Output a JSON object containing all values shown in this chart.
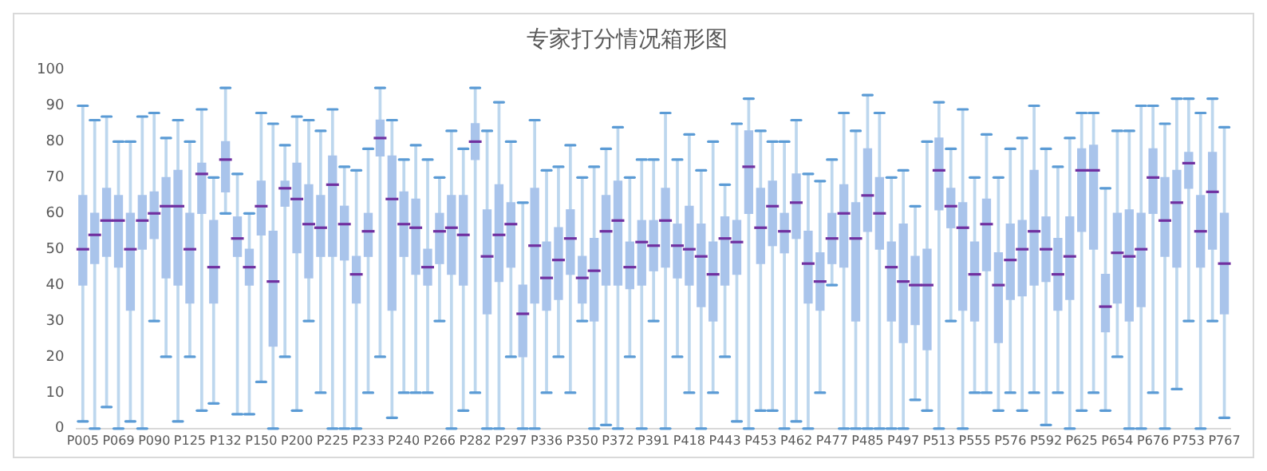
{
  "chart_data": {
    "type": "box",
    "title": "专家打分情况箱形图",
    "color": "#a9c4eb",
    "grid": false,
    "legend": false,
    "ylim": [
      0,
      100
    ],
    "yticks": [
      0,
      10,
      20,
      30,
      40,
      50,
      60,
      70,
      80,
      90,
      100
    ],
    "categories": [
      "P005",
      null,
      null,
      "P069",
      null,
      null,
      "P090",
      null,
      null,
      "P125",
      null,
      null,
      "P132",
      null,
      null,
      "P150",
      null,
      null,
      "P200",
      null,
      null,
      "P225",
      null,
      null,
      "P233",
      null,
      null,
      "P240",
      null,
      null,
      "P266",
      null,
      null,
      "P282",
      null,
      null,
      "P297",
      null,
      null,
      "P336",
      null,
      null,
      "P350",
      null,
      null,
      "P372",
      null,
      null,
      "P391",
      null,
      null,
      "P418",
      null,
      null,
      "P443",
      null,
      null,
      "P453",
      null,
      null,
      "P462",
      null,
      null,
      "P477",
      null,
      null,
      "P485",
      null,
      null,
      "P497",
      null,
      null,
      "P513",
      null,
      null,
      "P555",
      null,
      null,
      "P576",
      null,
      null,
      "P592",
      null,
      null,
      "P625",
      null,
      null,
      "P654",
      null,
      null,
      "P676",
      null,
      null,
      "P753",
      null,
      null,
      "P767"
    ],
    "boxes": [
      {
        "low": 2,
        "q1": 40,
        "median": 50,
        "q3": 65,
        "high": 90
      },
      {
        "low": 0,
        "q1": 46,
        "median": 54,
        "q3": 60,
        "high": 86
      },
      {
        "low": 6,
        "q1": 48,
        "median": 58,
        "q3": 67,
        "high": 87
      },
      {
        "low": 0,
        "q1": 45,
        "median": 58,
        "q3": 65,
        "high": 80
      },
      {
        "low": 2,
        "q1": 33,
        "median": 50,
        "q3": 60,
        "high": 80
      },
      {
        "low": 0,
        "q1": 50,
        "median": 58,
        "q3": 65,
        "high": 87
      },
      {
        "low": 30,
        "q1": 53,
        "median": 60,
        "q3": 66,
        "high": 88
      },
      {
        "low": 20,
        "q1": 42,
        "median": 62,
        "q3": 70,
        "high": 81
      },
      {
        "low": 2,
        "q1": 40,
        "median": 62,
        "q3": 72,
        "high": 86
      },
      {
        "low": 20,
        "q1": 35,
        "median": 50,
        "q3": 60,
        "high": 80
      },
      {
        "low": 5,
        "q1": 60,
        "median": 71,
        "q3": 74,
        "high": 89
      },
      {
        "low": 7,
        "q1": 35,
        "median": 45,
        "q3": 58,
        "high": 70
      },
      {
        "low": 60,
        "q1": 66,
        "median": 75,
        "q3": 80,
        "high": 95
      },
      {
        "low": 4,
        "q1": 48,
        "median": 53,
        "q3": 59,
        "high": 71
      },
      {
        "low": 4,
        "q1": 40,
        "median": 45,
        "q3": 50,
        "high": 60
      },
      {
        "low": 13,
        "q1": 54,
        "median": 62,
        "q3": 69,
        "high": 88
      },
      {
        "low": 0,
        "q1": 23,
        "median": 41,
        "q3": 55,
        "high": 85
      },
      {
        "low": 20,
        "q1": 62,
        "median": 67,
        "q3": 69,
        "high": 79
      },
      {
        "low": 5,
        "q1": 49,
        "median": 64,
        "q3": 74,
        "high": 87
      },
      {
        "low": 30,
        "q1": 42,
        "median": 57,
        "q3": 68,
        "high": 86
      },
      {
        "low": 10,
        "q1": 48,
        "median": 56,
        "q3": 65,
        "high": 83
      },
      {
        "low": 0,
        "q1": 48,
        "median": 68,
        "q3": 76,
        "high": 89
      },
      {
        "low": 0,
        "q1": 47,
        "median": 57,
        "q3": 62,
        "high": 73
      },
      {
        "low": 0,
        "q1": 35,
        "median": 43,
        "q3": 48,
        "high": 72
      },
      {
        "low": 10,
        "q1": 48,
        "median": 55,
        "q3": 60,
        "high": 78
      },
      {
        "low": 20,
        "q1": 76,
        "median": 81,
        "q3": 86,
        "high": 95
      },
      {
        "low": 3,
        "q1": 33,
        "median": 64,
        "q3": 76,
        "high": 86
      },
      {
        "low": 10,
        "q1": 48,
        "median": 57,
        "q3": 66,
        "high": 75
      },
      {
        "low": 10,
        "q1": 43,
        "median": 56,
        "q3": 64,
        "high": 79
      },
      {
        "low": 10,
        "q1": 40,
        "median": 45,
        "q3": 50,
        "high": 75
      },
      {
        "low": 30,
        "q1": 46,
        "median": 55,
        "q3": 60,
        "high": 70
      },
      {
        "low": 0,
        "q1": 43,
        "median": 56,
        "q3": 65,
        "high": 83
      },
      {
        "low": 5,
        "q1": 40,
        "median": 54,
        "q3": 65,
        "high": 78
      },
      {
        "low": 10,
        "q1": 75,
        "median": 80,
        "q3": 85,
        "high": 95
      },
      {
        "low": 0,
        "q1": 32,
        "median": 48,
        "q3": 61,
        "high": 83
      },
      {
        "low": 0,
        "q1": 41,
        "median": 54,
        "q3": 68,
        "high": 91
      },
      {
        "low": 20,
        "q1": 45,
        "median": 57,
        "q3": 63,
        "high": 80
      },
      {
        "low": 0,
        "q1": 20,
        "median": 32,
        "q3": 40,
        "high": 63
      },
      {
        "low": 0,
        "q1": 35,
        "median": 51,
        "q3": 67,
        "high": 86
      },
      {
        "low": 10,
        "q1": 33,
        "median": 42,
        "q3": 52,
        "high": 72
      },
      {
        "low": 20,
        "q1": 36,
        "median": 47,
        "q3": 56,
        "high": 73
      },
      {
        "low": 10,
        "q1": 43,
        "median": 53,
        "q3": 61,
        "high": 79
      },
      {
        "low": 30,
        "q1": 35,
        "median": 42,
        "q3": 48,
        "high": 70
      },
      {
        "low": 0,
        "q1": 30,
        "median": 44,
        "q3": 53,
        "high": 73
      },
      {
        "low": 1,
        "q1": 40,
        "median": 55,
        "q3": 65,
        "high": 78
      },
      {
        "low": 0,
        "q1": 40,
        "median": 58,
        "q3": 69,
        "high": 84
      },
      {
        "low": 20,
        "q1": 39,
        "median": 45,
        "q3": 52,
        "high": 70
      },
      {
        "low": 0,
        "q1": 40,
        "median": 52,
        "q3": 58,
        "high": 75
      },
      {
        "low": 30,
        "q1": 44,
        "median": 51,
        "q3": 58,
        "high": 75
      },
      {
        "low": 0,
        "q1": 45,
        "median": 58,
        "q3": 67,
        "high": 88
      },
      {
        "low": 20,
        "q1": 42,
        "median": 51,
        "q3": 57,
        "high": 75
      },
      {
        "low": 10,
        "q1": 40,
        "median": 50,
        "q3": 62,
        "high": 82
      },
      {
        "low": 0,
        "q1": 34,
        "median": 48,
        "q3": 57,
        "high": 72
      },
      {
        "low": 10,
        "q1": 30,
        "median": 43,
        "q3": 52,
        "high": 80
      },
      {
        "low": 20,
        "q1": 40,
        "median": 53,
        "q3": 59,
        "high": 68
      },
      {
        "low": 2,
        "q1": 43,
        "median": 52,
        "q3": 58,
        "high": 85
      },
      {
        "low": 0,
        "q1": 60,
        "median": 73,
        "q3": 83,
        "high": 92
      },
      {
        "low": 5,
        "q1": 46,
        "median": 56,
        "q3": 67,
        "high": 83
      },
      {
        "low": 5,
        "q1": 51,
        "median": 62,
        "q3": 69,
        "high": 80
      },
      {
        "low": 0,
        "q1": 49,
        "median": 55,
        "q3": 60,
        "high": 80
      },
      {
        "low": 2,
        "q1": 53,
        "median": 63,
        "q3": 71,
        "high": 86
      },
      {
        "low": 0,
        "q1": 35,
        "median": 46,
        "q3": 55,
        "high": 71
      },
      {
        "low": 10,
        "q1": 33,
        "median": 41,
        "q3": 49,
        "high": 69
      },
      {
        "low": 40,
        "q1": 46,
        "median": 53,
        "q3": 60,
        "high": 75
      },
      {
        "low": 0,
        "q1": 45,
        "median": 60,
        "q3": 68,
        "high": 88
      },
      {
        "low": 0,
        "q1": 30,
        "median": 53,
        "q3": 63,
        "high": 83
      },
      {
        "low": 0,
        "q1": 55,
        "median": 65,
        "q3": 78,
        "high": 93
      },
      {
        "low": 0,
        "q1": 50,
        "median": 60,
        "q3": 70,
        "high": 88
      },
      {
        "low": 0,
        "q1": 30,
        "median": 45,
        "q3": 52,
        "high": 70
      },
      {
        "low": 0,
        "q1": 24,
        "median": 41,
        "q3": 57,
        "high": 72
      },
      {
        "low": 8,
        "q1": 29,
        "median": 40,
        "q3": 48,
        "high": 62
      },
      {
        "low": 5,
        "q1": 22,
        "median": 40,
        "q3": 50,
        "high": 80
      },
      {
        "low": 0,
        "q1": 61,
        "median": 72,
        "q3": 81,
        "high": 91
      },
      {
        "low": 30,
        "q1": 56,
        "median": 62,
        "q3": 67,
        "high": 78
      },
      {
        "low": 0,
        "q1": 33,
        "median": 56,
        "q3": 63,
        "high": 89
      },
      {
        "low": 10,
        "q1": 30,
        "median": 43,
        "q3": 52,
        "high": 70
      },
      {
        "low": 10,
        "q1": 44,
        "median": 57,
        "q3": 64,
        "high": 82
      },
      {
        "low": 5,
        "q1": 24,
        "median": 40,
        "q3": 49,
        "high": 70
      },
      {
        "low": 10,
        "q1": 36,
        "median": 47,
        "q3": 57,
        "high": 78
      },
      {
        "low": 5,
        "q1": 37,
        "median": 50,
        "q3": 58,
        "high": 81
      },
      {
        "low": 10,
        "q1": 40,
        "median": 55,
        "q3": 72,
        "high": 90
      },
      {
        "low": 1,
        "q1": 41,
        "median": 50,
        "q3": 59,
        "high": 78
      },
      {
        "low": 10,
        "q1": 33,
        "median": 43,
        "q3": 53,
        "high": 73
      },
      {
        "low": 0,
        "q1": 36,
        "median": 48,
        "q3": 59,
        "high": 81
      },
      {
        "low": 5,
        "q1": 55,
        "median": 72,
        "q3": 78,
        "high": 88
      },
      {
        "low": 10,
        "q1": 50,
        "median": 72,
        "q3": 79,
        "high": 88
      },
      {
        "low": 5,
        "q1": 27,
        "median": 34,
        "q3": 43,
        "high": 67
      },
      {
        "low": 20,
        "q1": 35,
        "median": 49,
        "q3": 60,
        "high": 83
      },
      {
        "low": 0,
        "q1": 30,
        "median": 48,
        "q3": 61,
        "high": 83
      },
      {
        "low": 0,
        "q1": 34,
        "median": 50,
        "q3": 60,
        "high": 90
      },
      {
        "low": 10,
        "q1": 60,
        "median": 70,
        "q3": 78,
        "high": 90
      },
      {
        "low": 0,
        "q1": 48,
        "median": 58,
        "q3": 70,
        "high": 85
      },
      {
        "low": 11,
        "q1": 45,
        "median": 63,
        "q3": 72,
        "high": 92
      },
      {
        "low": 30,
        "q1": 67,
        "median": 74,
        "q3": 77,
        "high": 92
      },
      {
        "low": 0,
        "q1": 45,
        "median": 55,
        "q3": 65,
        "high": 88
      },
      {
        "low": 30,
        "q1": 50,
        "median": 66,
        "q3": 77,
        "high": 92
      },
      {
        "low": 3,
        "q1": 32,
        "median": 46,
        "q3": 60,
        "high": 84
      }
    ]
  }
}
